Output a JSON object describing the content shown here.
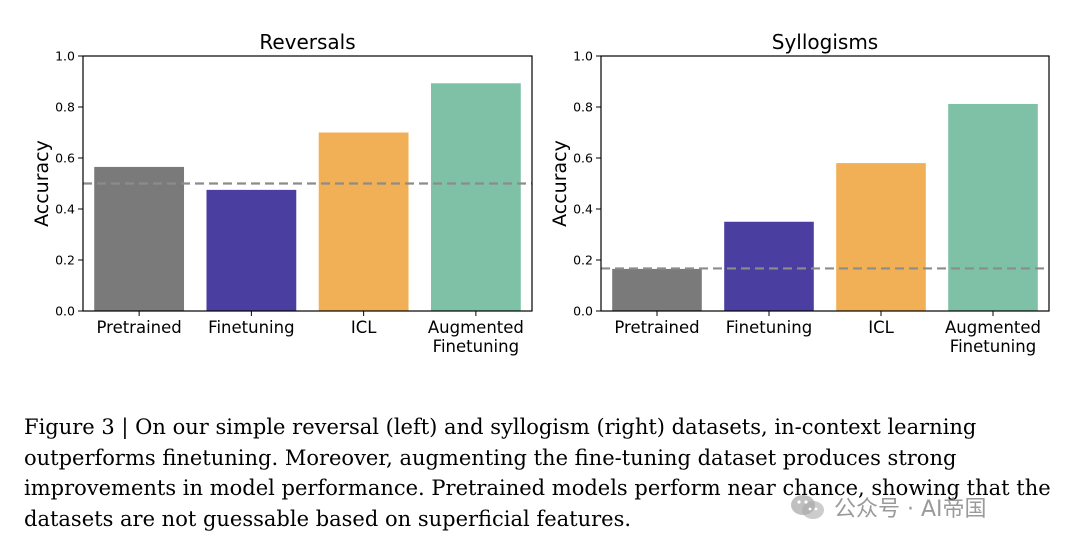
{
  "chart_data": [
    {
      "type": "bar",
      "title": "Reversals",
      "xlabel": "",
      "ylabel": "Accuracy",
      "ylim": [
        0,
        1.0
      ],
      "yticks": [
        "0.0",
        "0.2",
        "0.4",
        "0.6",
        "0.8",
        "1.0"
      ],
      "categories": [
        [
          "Pretrained"
        ],
        [
          "Finetuning"
        ],
        [
          "ICL"
        ],
        [
          "Augmented",
          "Finetuning"
        ]
      ],
      "values": [
        0.565,
        0.475,
        0.7,
        0.893
      ],
      "colors": [
        "#7a7a7a",
        "#4a3fa0",
        "#f2b056",
        "#7fc1a6"
      ],
      "chance_line": 0.5,
      "grid": false
    },
    {
      "type": "bar",
      "title": "Syllogisms",
      "xlabel": "",
      "ylabel": "Accuracy",
      "ylim": [
        0,
        1.0
      ],
      "yticks": [
        "0.0",
        "0.2",
        "0.4",
        "0.6",
        "0.8",
        "1.0"
      ],
      "categories": [
        [
          "Pretrained"
        ],
        [
          "Finetuning"
        ],
        [
          "ICL"
        ],
        [
          "Augmented",
          "Finetuning"
        ]
      ],
      "values": [
        0.165,
        0.35,
        0.58,
        0.812
      ],
      "colors": [
        "#7a7a7a",
        "#4a3fa0",
        "#f2b056",
        "#7fc1a6"
      ],
      "chance_line": 0.167,
      "grid": false
    }
  ],
  "caption": "Figure 3 | On our simple reversal (left) and syllogism (right) datasets, in-context learning outperforms finetuning. Moreover, augmenting the fine-tuning dataset produces strong improvements in model performance. Pretrained models perform near chance, showing that the datasets are not guessable based on superficial features.",
  "watermark": {
    "text": "公众号 · AI帝国",
    "icon": "wechat-icon"
  }
}
